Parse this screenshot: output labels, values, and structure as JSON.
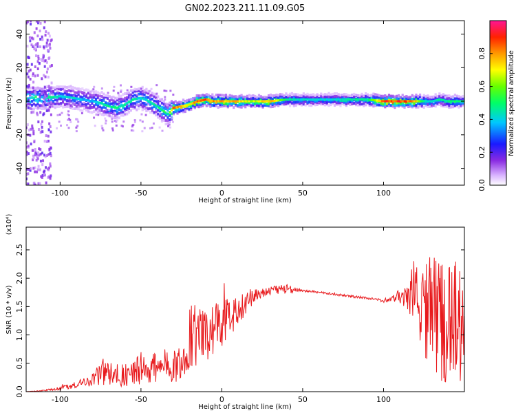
{
  "title": "GN02.2023.211.11.09.G05",
  "chart_data": [
    {
      "type": "heatmap",
      "xlabel": "Height of straight line (km)",
      "ylabel": "Frequency (Hz)",
      "xlim": [
        -121,
        150
      ],
      "ylim": [
        -50,
        48
      ],
      "x_ticks": [
        -100,
        -50,
        0,
        50,
        100
      ],
      "y_ticks": [
        -40,
        -20,
        0,
        20,
        40
      ],
      "colorbar": {
        "label": "Normalized spectral amplitude",
        "range": [
          0,
          1
        ],
        "ticks": [
          "0.0",
          "0.2",
          "0.4",
          "0.6",
          "0.8"
        ],
        "tick_values": [
          0,
          0.2,
          0.4,
          0.6,
          0.8
        ]
      },
      "ridge": {
        "x": [
          -115,
          -108,
          -100,
          -92,
          -86,
          -80,
          -75,
          -70,
          -65,
          -60,
          -55,
          -50,
          -45,
          -40,
          -36,
          -33,
          -30,
          -25,
          -20,
          -15,
          -10,
          -5,
          0,
          10,
          20,
          30,
          40,
          50,
          60,
          70,
          80,
          90,
          100,
          110,
          118,
          125,
          130,
          135,
          140,
          145,
          150
        ],
        "y": [
          2,
          2,
          3,
          2,
          1,
          0,
          -1,
          -3,
          -4,
          -2,
          1,
          2,
          0,
          -3,
          -6,
          -8,
          -4,
          -3,
          -2,
          0,
          1,
          0,
          0,
          0,
          0,
          0,
          1,
          1,
          1,
          1,
          1,
          1,
          0,
          0,
          0,
          0,
          0,
          1,
          0,
          0,
          0
        ],
        "amplitude": [
          0.55,
          0.55,
          0.45,
          0.45,
          0.4,
          0.4,
          0.45,
          0.5,
          0.5,
          0.5,
          0.5,
          0.45,
          0.45,
          0.5,
          0.55,
          0.5,
          0.95,
          0.8,
          0.75,
          0.95,
          0.9,
          0.85,
          0.85,
          0.8,
          0.7,
          0.85,
          0.5,
          0.45,
          0.45,
          0.45,
          0.5,
          0.5,
          0.95,
          0.95,
          0.9,
          0.5,
          0.45,
          0.5,
          0.5,
          0.55,
          0.5
        ]
      }
    },
    {
      "type": "line",
      "xlabel": "Height of straight line (km)",
      "ylabel": "SNR (10 * v/v)",
      "y_multiplier": "(x10⁴)",
      "xlim": [
        -121,
        150
      ],
      "ylim": [
        0,
        2.9
      ],
      "x_ticks": [
        -100,
        -50,
        0,
        50,
        100
      ],
      "y_ticks": [
        "0.0",
        "0.5",
        "1.0",
        "1.5",
        "2.0",
        "2.5"
      ],
      "y_tick_values": [
        0,
        0.5,
        1.0,
        1.5,
        2.0,
        2.5
      ],
      "color": "#e8191c",
      "x": [
        -121,
        -110,
        -100,
        -90,
        -80,
        -75,
        -70,
        -65,
        -60,
        -55,
        -50,
        -45,
        -40,
        -35,
        -30,
        -25,
        -22,
        -20,
        -18,
        -15,
        -10,
        -5,
        0,
        5,
        10,
        15,
        20,
        25,
        30,
        35,
        40,
        45,
        50,
        60,
        70,
        80,
        90,
        100,
        105,
        110,
        115,
        120,
        125,
        130,
        135,
        140,
        145,
        150
      ],
      "y": [
        0.0,
        0.02,
        0.06,
        0.12,
        0.22,
        0.3,
        0.32,
        0.28,
        0.3,
        0.35,
        0.4,
        0.4,
        0.42,
        0.45,
        0.45,
        0.5,
        0.8,
        0.95,
        1.0,
        0.95,
        1.0,
        1.1,
        1.2,
        1.3,
        1.45,
        1.58,
        1.7,
        1.75,
        1.78,
        1.8,
        1.82,
        1.8,
        1.78,
        1.75,
        1.72,
        1.68,
        1.65,
        1.6,
        1.65,
        1.7,
        1.75,
        1.8,
        1.5,
        1.4,
        1.3,
        1.25,
        1.2,
        1.2
      ],
      "noise_amplitude": [
        0.0,
        0.01,
        0.03,
        0.06,
        0.12,
        0.25,
        0.2,
        0.2,
        0.22,
        0.25,
        0.3,
        0.3,
        0.3,
        0.3,
        0.3,
        0.35,
        0.6,
        0.6,
        0.6,
        0.5,
        0.5,
        0.45,
        0.4,
        0.35,
        0.3,
        0.2,
        0.15,
        0.1,
        0.08,
        0.08,
        0.12,
        0.04,
        0.02,
        0.02,
        0.02,
        0.02,
        0.02,
        0.03,
        0.06,
        0.15,
        0.35,
        0.6,
        0.9,
        1.0,
        1.1,
        1.1,
        1.1,
        1.2
      ]
    }
  ]
}
